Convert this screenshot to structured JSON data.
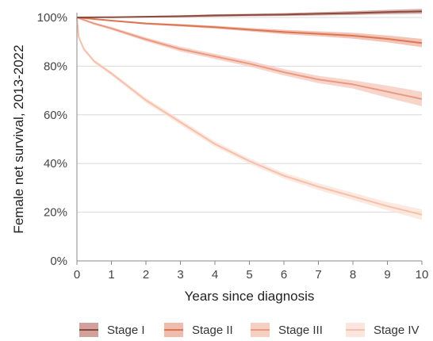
{
  "chart_data": {
    "type": "line",
    "xlabel": "Years since diagnosis",
    "ylabel": "Female net survival, 2013-2022",
    "xlim": [
      0,
      10
    ],
    "ylim": [
      0,
      100
    ],
    "x_ticks": [
      0,
      1,
      2,
      3,
      4,
      5,
      6,
      7,
      8,
      9,
      10
    ],
    "x_tick_labels": [
      "0",
      "1",
      "2",
      "3",
      "4",
      "5",
      "6",
      "7",
      "8",
      "9",
      "10"
    ],
    "y_ticks": [
      0,
      20,
      40,
      60,
      80,
      100
    ],
    "y_tick_labels": [
      "0%",
      "20%",
      "40%",
      "60%",
      "80%",
      "100%"
    ],
    "grid": "horizontal",
    "legend_position": "bottom",
    "series": [
      {
        "name": "Stage I",
        "color": "#8c4a3e",
        "band_color": "#c9928a",
        "x": [
          0,
          1,
          2,
          3,
          4,
          5,
          6,
          7,
          8,
          9,
          10
        ],
        "y": [
          100,
          100.1,
          100.3,
          100.5,
          100.8,
          101.0,
          101.2,
          101.5,
          101.8,
          102.2,
          102.5
        ],
        "lower": [
          99.9,
          99.9,
          100.0,
          100.1,
          100.3,
          100.5,
          100.6,
          100.8,
          101.0,
          101.3,
          101.5
        ],
        "upper": [
          100.1,
          100.3,
          100.6,
          100.9,
          101.3,
          101.5,
          101.8,
          102.2,
          102.6,
          103.1,
          103.5
        ]
      },
      {
        "name": "Stage II",
        "color": "#dd7552",
        "band_color": "#ecb09c",
        "x": [
          0,
          1,
          2,
          3,
          4,
          5,
          6,
          7,
          8,
          9,
          10
        ],
        "y": [
          100,
          98.7,
          97.5,
          96.8,
          96.0,
          95.0,
          94.0,
          93.3,
          92.5,
          91.2,
          89.5
        ],
        "lower": [
          99.9,
          98.4,
          97.1,
          96.3,
          95.4,
          94.3,
          93.1,
          92.3,
          91.3,
          89.8,
          87.8
        ],
        "upper": [
          100.1,
          99.0,
          97.9,
          97.3,
          96.6,
          95.7,
          94.9,
          94.3,
          93.7,
          92.6,
          91.2
        ]
      },
      {
        "name": "Stage III",
        "color": "#eb9980",
        "band_color": "#f4c7b9",
        "x": [
          0,
          0.5,
          1,
          2,
          3,
          4,
          5,
          6,
          7,
          8,
          9,
          10
        ],
        "y": [
          100,
          97.5,
          95.5,
          91.0,
          87.0,
          84.0,
          81.0,
          77.5,
          74.5,
          72.5,
          69.5,
          66.5
        ],
        "lower": [
          99.8,
          97.0,
          94.9,
          90.2,
          86.0,
          82.9,
          79.8,
          76.2,
          73.0,
          70.8,
          67.0,
          63.5
        ],
        "upper": [
          100.2,
          98.0,
          96.1,
          91.8,
          88.0,
          85.1,
          82.2,
          78.8,
          76.0,
          74.2,
          72.0,
          69.5
        ]
      },
      {
        "name": "Stage IV",
        "color": "#f6c0ab",
        "band_color": "#fbe1d6",
        "x": [
          0,
          0.05,
          0.2,
          0.5,
          1,
          1.5,
          2,
          3,
          4,
          5,
          6,
          7,
          8,
          9,
          10
        ],
        "y": [
          100,
          92.0,
          87.0,
          82.0,
          77.0,
          71.5,
          66.0,
          57.0,
          48.0,
          41.0,
          35.0,
          30.5,
          26.5,
          22.5,
          19.0
        ],
        "lower": [
          99.7,
          91.4,
          86.3,
          81.3,
          76.2,
          70.6,
          65.0,
          55.9,
          46.9,
          39.9,
          33.8,
          29.1,
          25.0,
          20.8,
          16.8
        ],
        "upper": [
          100.3,
          92.6,
          87.7,
          82.7,
          77.8,
          72.4,
          67.0,
          58.1,
          49.1,
          42.1,
          36.2,
          31.9,
          28.0,
          24.2,
          21.2
        ]
      }
    ]
  }
}
